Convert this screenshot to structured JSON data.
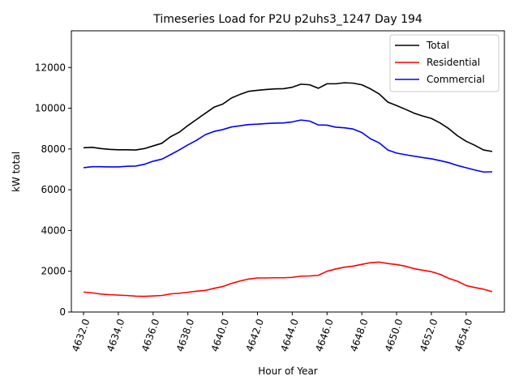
{
  "chart_data": {
    "type": "line",
    "title": "Timeseries Load for P2U p2uhs3_1247  Day 194",
    "xlabel": "Hour of Year",
    "ylabel": "kW total",
    "xlim": [
      4631.3,
      4656.2
    ],
    "ylim": [
      0,
      13800
    ],
    "xticks": [
      4632,
      4634,
      4636,
      4638,
      4640,
      4642,
      4644,
      4646,
      4648,
      4650,
      4652,
      4654
    ],
    "xtick_labels": [
      "4632.0",
      "4634.0",
      "4636.0",
      "4638.0",
      "4640.0",
      "4642.0",
      "4644.0",
      "4646.0",
      "4648.0",
      "4650.0",
      "4652.0",
      "4654.0"
    ],
    "yticks": [
      0,
      2000,
      4000,
      6000,
      8000,
      10000,
      12000
    ],
    "ytick_labels": [
      "0",
      "2000",
      "4000",
      "6000",
      "8000",
      "10000",
      "12000"
    ],
    "legend_position": "top-right",
    "grid": false,
    "x": [
      4632,
      4632.5,
      4633,
      4633.5,
      4634,
      4634.5,
      4635,
      4635.5,
      4636,
      4636.5,
      4637,
      4637.5,
      4638,
      4638.5,
      4639,
      4639.5,
      4640,
      4640.5,
      4641,
      4641.5,
      4642,
      4642.5,
      4643,
      4643.5,
      4644,
      4644.5,
      4645,
      4645.5,
      4646,
      4646.5,
      4647,
      4647.5,
      4648,
      4648.5,
      4649,
      4649.5,
      4650,
      4650.5,
      4651,
      4651.5,
      4652,
      4652.5,
      4653,
      4653.5,
      4654,
      4654.5,
      4655,
      4655.5
    ],
    "series": [
      {
        "name": "Total",
        "color": "#000000",
        "values": [
          8060,
          8080,
          8020,
          7980,
          7960,
          7960,
          7950,
          8020,
          8150,
          8280,
          8600,
          8820,
          9150,
          9450,
          9750,
          10050,
          10200,
          10500,
          10680,
          10830,
          10880,
          10920,
          10950,
          10960,
          11030,
          11180,
          11150,
          10980,
          11200,
          11200,
          11250,
          11230,
          11150,
          10950,
          10700,
          10300,
          10130,
          9950,
          9760,
          9620,
          9500,
          9280,
          9000,
          8650,
          8380,
          8180,
          7950,
          7880
        ]
      },
      {
        "name": "Residential",
        "color": "#ff0000",
        "values": [
          980,
          940,
          880,
          850,
          830,
          810,
          780,
          770,
          790,
          810,
          890,
          920,
          970,
          1020,
          1060,
          1160,
          1250,
          1400,
          1520,
          1620,
          1670,
          1670,
          1680,
          1680,
          1700,
          1760,
          1770,
          1800,
          2000,
          2110,
          2200,
          2250,
          2340,
          2420,
          2450,
          2380,
          2330,
          2250,
          2130,
          2050,
          1980,
          1850,
          1650,
          1510,
          1300,
          1200,
          1120,
          1000
        ]
      },
      {
        "name": "Commercial",
        "color": "#0000ff",
        "values": [
          7080,
          7130,
          7130,
          7120,
          7120,
          7150,
          7160,
          7250,
          7400,
          7500,
          7720,
          7950,
          8200,
          8430,
          8700,
          8860,
          8950,
          9080,
          9140,
          9200,
          9220,
          9250,
          9270,
          9280,
          9330,
          9420,
          9370,
          9180,
          9170,
          9070,
          9040,
          8980,
          8810,
          8500,
          8300,
          7950,
          7800,
          7720,
          7650,
          7580,
          7520,
          7430,
          7330,
          7190,
          7080,
          6970,
          6870,
          6880
        ]
      }
    ]
  }
}
